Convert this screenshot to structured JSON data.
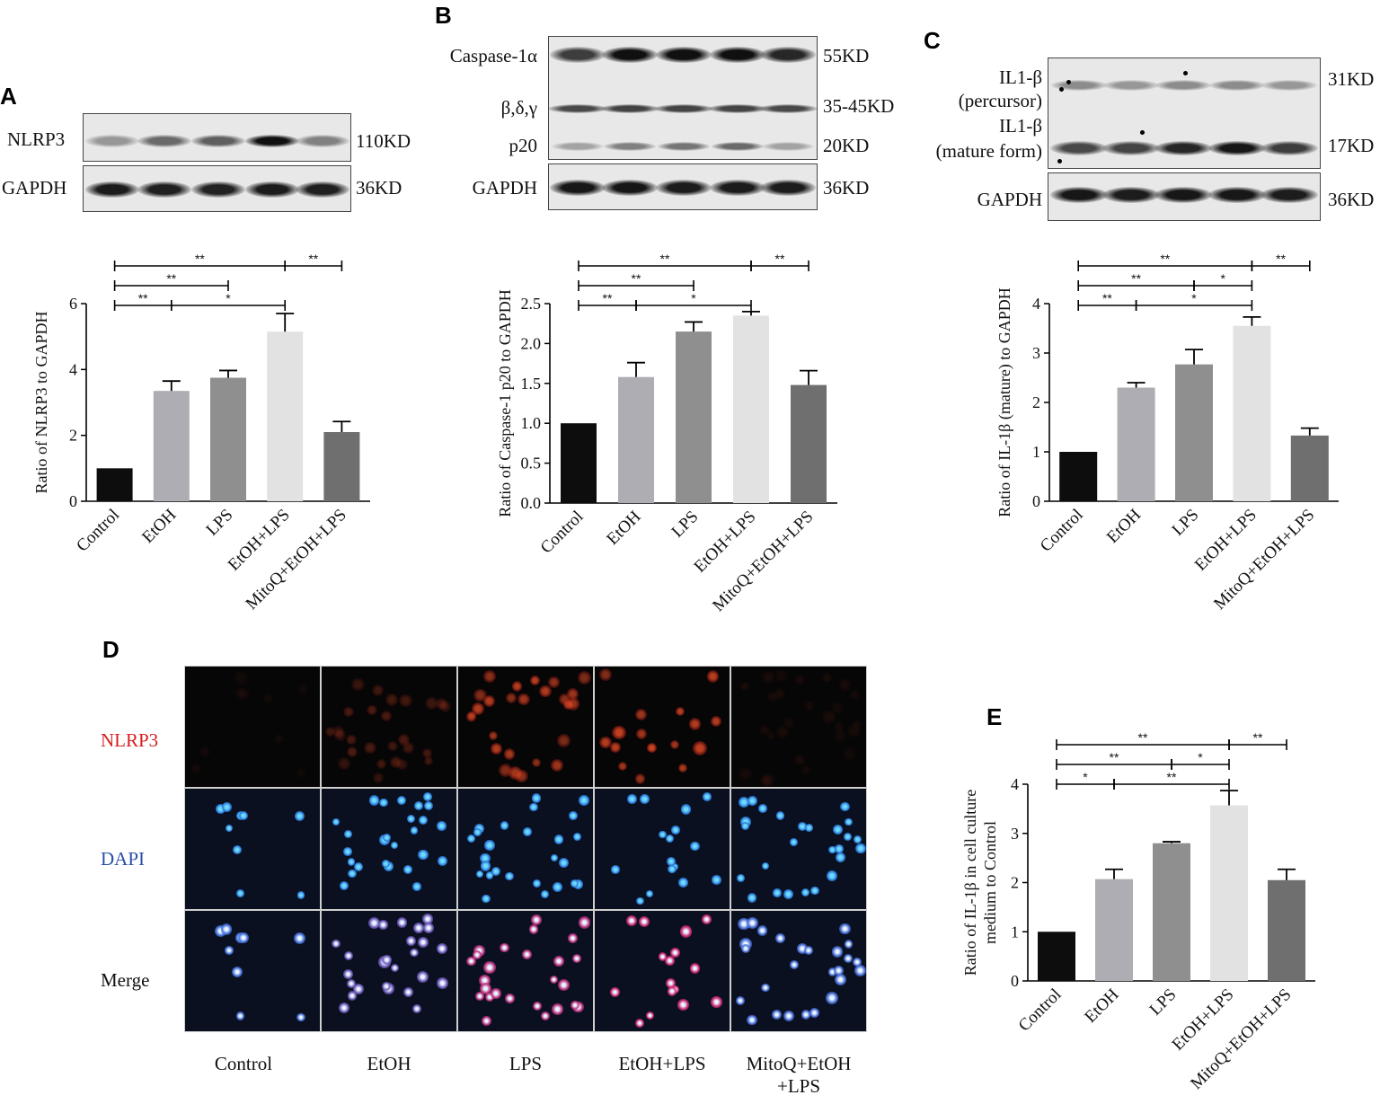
{
  "panels": {
    "A": {
      "label": "A",
      "blot_rows": [
        {
          "name": "NLRP3",
          "size": "110KD",
          "intensity": [
            0.35,
            0.55,
            0.6,
            0.95,
            0.45
          ]
        },
        {
          "name": "GAPDH",
          "size": "36KD",
          "intensity": [
            0.9,
            0.88,
            0.87,
            0.9,
            0.88
          ]
        }
      ]
    },
    "B": {
      "label": "B",
      "blot_rows": [
        {
          "name": "Caspase-1α",
          "size": "55KD",
          "intensity": [
            0.75,
            0.95,
            0.95,
            0.95,
            0.85
          ]
        },
        {
          "name": "β,δ,γ",
          "size": "35-45KD",
          "intensity": [
            0.7,
            0.72,
            0.72,
            0.72,
            0.7
          ]
        },
        {
          "name": "p20",
          "size": "20KD",
          "intensity": [
            0.3,
            0.45,
            0.5,
            0.55,
            0.3
          ]
        },
        {
          "name": "GAPDH",
          "size": "36KD",
          "intensity": [
            0.92,
            0.92,
            0.9,
            0.9,
            0.9
          ]
        }
      ]
    },
    "C": {
      "label": "C",
      "blot_labels": [
        "IL1-β",
        "(percursor)",
        "IL1-β",
        "(mature form)"
      ],
      "blot_rows": [
        {
          "name": "IL1-β (percursor)",
          "size": "31KD",
          "intensity": [
            0.4,
            0.35,
            0.4,
            0.4,
            0.35
          ]
        },
        {
          "name": "IL1-β (mature form)",
          "size": "17KD",
          "intensity": [
            0.7,
            0.72,
            0.85,
            0.92,
            0.75
          ]
        },
        {
          "name": "GAPDH",
          "size": "36KD",
          "intensity": [
            0.92,
            0.9,
            0.92,
            0.92,
            0.9
          ]
        }
      ]
    },
    "D": {
      "label": "D",
      "rows": [
        {
          "name": "NLRP3",
          "color": "#d42020"
        },
        {
          "name": "DAPI",
          "color": "#2a4fa8"
        },
        {
          "name": "Merge",
          "color": "#111111"
        }
      ],
      "columns": [
        {
          "line1": "Control",
          "line2": ""
        },
        {
          "line1": "EtOH",
          "line2": ""
        },
        {
          "line1": "LPS",
          "line2": ""
        },
        {
          "line1": "EtOH+LPS",
          "line2": ""
        },
        {
          "line1": "MitoQ+EtOH",
          "line2": "+LPS"
        }
      ],
      "red_intensity": [
        0.05,
        0.3,
        0.75,
        0.85,
        0.08
      ]
    },
    "E": {
      "label": "E"
    }
  },
  "chart_data": [
    {
      "id": "A",
      "type": "bar",
      "categories": [
        "Control",
        "EtOH",
        "LPS",
        "EtOH+LPS",
        "MitoQ+EtOH+LPS"
      ],
      "values": [
        1.0,
        3.35,
        3.75,
        5.15,
        2.1
      ],
      "errors": [
        0,
        0.3,
        0.22,
        0.55,
        0.32
      ],
      "ylabel": "Ratio of NLRP3 to GAPDH",
      "ylim": [
        0,
        6
      ],
      "yticks": [
        "0",
        "2",
        "4",
        "6"
      ],
      "bar_colors": [
        "#0d0d0d",
        "#aeadb3",
        "#8f8f8f",
        "#e2e2e2",
        "#6f6f6f"
      ],
      "significance": [
        {
          "from": 0,
          "to": 1,
          "label": "**",
          "level": 0
        },
        {
          "from": 1,
          "to": 3,
          "label": "*",
          "level": 0
        },
        {
          "from": 0,
          "to": 2,
          "label": "**",
          "level": 1
        },
        {
          "from": 0,
          "to": 3,
          "label": "**",
          "level": 2
        },
        {
          "from": 3,
          "to": 4,
          "label": "**",
          "level": 2
        }
      ]
    },
    {
      "id": "B",
      "type": "bar",
      "categories": [
        "Control",
        "EtOH",
        "LPS",
        "EtOH+LPS",
        "MitoQ+EtOH+LPS"
      ],
      "values": [
        1.0,
        1.58,
        2.15,
        2.35,
        1.48
      ],
      "errors": [
        0,
        0.18,
        0.12,
        0.05,
        0.18
      ],
      "ylabel": "Ratio of Caspase-1 p20 to GAPDH",
      "ylim": [
        0,
        2.5
      ],
      "yticks": [
        "0.0",
        "0.5",
        "1.0",
        "1.5",
        "2.0",
        "2.5"
      ],
      "bar_colors": [
        "#0d0d0d",
        "#aeadb3",
        "#8f8f8f",
        "#e2e2e2",
        "#6f6f6f"
      ],
      "significance": [
        {
          "from": 0,
          "to": 1,
          "label": "**",
          "level": 0
        },
        {
          "from": 1,
          "to": 3,
          "label": "*",
          "level": 0
        },
        {
          "from": 0,
          "to": 2,
          "label": "**",
          "level": 1
        },
        {
          "from": 0,
          "to": 3,
          "label": "**",
          "level": 2
        },
        {
          "from": 3,
          "to": 4,
          "label": "**",
          "level": 2
        }
      ]
    },
    {
      "id": "C",
      "type": "bar",
      "categories": [
        "Control",
        "EtOH",
        "LPS",
        "EtOH+LPS",
        "MitoQ+EtOH+LPS"
      ],
      "values": [
        1.0,
        2.3,
        2.77,
        3.55,
        1.33
      ],
      "errors": [
        0,
        0.1,
        0.3,
        0.18,
        0.15
      ],
      "ylabel": "Ratio of IL-1β (mature) to GAPDH",
      "ylim": [
        0,
        4
      ],
      "yticks": [
        "0",
        "1",
        "2",
        "3",
        "4"
      ],
      "bar_colors": [
        "#0d0d0d",
        "#aeadb3",
        "#8f8f8f",
        "#e2e2e2",
        "#6f6f6f"
      ],
      "significance": [
        {
          "from": 0,
          "to": 1,
          "label": "**",
          "level": 0
        },
        {
          "from": 1,
          "to": 3,
          "label": "*",
          "level": 0
        },
        {
          "from": 0,
          "to": 2,
          "label": "**",
          "level": 1
        },
        {
          "from": 2,
          "to": 3,
          "label": "*",
          "level": 1
        },
        {
          "from": 0,
          "to": 3,
          "label": "**",
          "level": 2
        },
        {
          "from": 3,
          "to": 4,
          "label": "**",
          "level": 2
        }
      ]
    },
    {
      "id": "E",
      "type": "bar",
      "categories": [
        "Control",
        "EtOH",
        "LPS",
        "EtOH+LPS",
        "MitoQ+EtOH+LPS"
      ],
      "values": [
        1.0,
        2.07,
        2.8,
        3.57,
        2.05
      ],
      "errors": [
        0,
        0.2,
        0.03,
        0.3,
        0.22
      ],
      "ylabel": "Ratio of IL-1β in cell culture medium to Control",
      "ylabel_lines": [
        "Ratio of IL-1β in cell culture",
        "medium to Control"
      ],
      "ylim": [
        0,
        4
      ],
      "yticks": [
        "0",
        "1",
        "2",
        "3",
        "4"
      ],
      "bar_colors": [
        "#0d0d0d",
        "#aeadb3",
        "#8f8f8f",
        "#e2e2e2",
        "#6f6f6f"
      ],
      "significance": [
        {
          "from": 0,
          "to": 1,
          "label": "*",
          "level": 0
        },
        {
          "from": 1,
          "to": 3,
          "label": "**",
          "level": 0
        },
        {
          "from": 0,
          "to": 2,
          "label": "**",
          "level": 1
        },
        {
          "from": 2,
          "to": 3,
          "label": "*",
          "level": 1
        },
        {
          "from": 0,
          "to": 3,
          "label": "**",
          "level": 2
        },
        {
          "from": 3,
          "to": 4,
          "label": "**",
          "level": 2
        }
      ]
    }
  ]
}
